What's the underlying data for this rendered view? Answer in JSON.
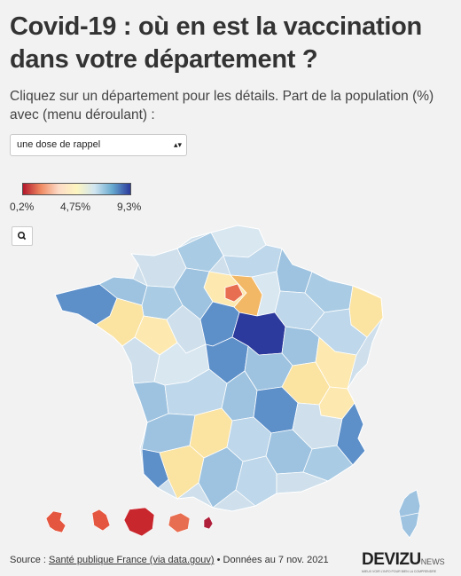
{
  "header": {
    "title": "Covid-19 : où en est la vaccination dans votre département ?",
    "subtitle": "Cliquez sur un département pour les détails. Part de la population (%) avec (menu déroulant) :"
  },
  "selector": {
    "selected": "une dose de rappel",
    "arrow": "▴▾"
  },
  "legend": {
    "min_label": "0,2%",
    "mid_label": "4,75%",
    "max_label": "9,3%",
    "min": 0.2,
    "mid": 4.75,
    "max": 9.3,
    "colors": [
      "#b2182b",
      "#ef8a62",
      "#fddbc7",
      "#fdf5c0",
      "#d1e5f0",
      "#67a9cf",
      "#2b3a9c"
    ]
  },
  "zoom": {
    "icon": "search-icon"
  },
  "footer": {
    "prefix": "Source : ",
    "source_link": "Santé publique France (via data.gouv)",
    "suffix": " • Données au 7 nov. 2021"
  },
  "logo": {
    "name": "DEVIZU",
    "suffix": "NEWS",
    "tagline": "MIEUX VOIR L'INFO POUR BIEN LA COMPRENDRE"
  },
  "colors": {
    "background": "#f2f2f2",
    "land_light": "#cfe0ec",
    "land_mid": "#9ec3e0",
    "land_dark": "#5d8fc9",
    "land_darkest": "#2b3a9c",
    "land_yellow": "#fbe3a1",
    "land_orange": "#f3b866",
    "land_red": "#c8272e"
  }
}
